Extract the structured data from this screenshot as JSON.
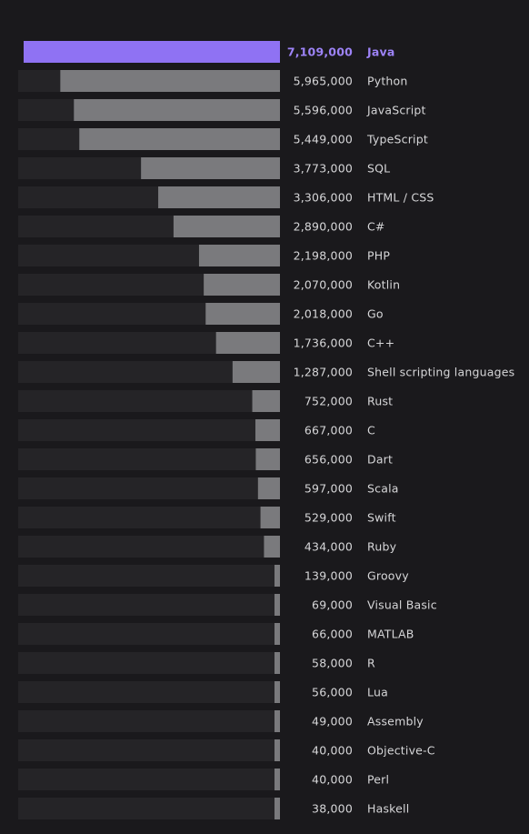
{
  "chart_data": {
    "type": "bar",
    "orientation": "horizontal",
    "highlight": "Java",
    "colors": {
      "background": "#1a191c",
      "track": "#252427",
      "bar": "#7a7a7d",
      "highlight_bar": "#8f72f3",
      "highlight_text": "#9d83f7",
      "text": "#d6d6d8"
    },
    "xlim": [
      0,
      7109000
    ],
    "categories": [
      "Java",
      "Python",
      "JavaScript",
      "TypeScript",
      "SQL",
      "HTML / CSS",
      "C#",
      "PHP",
      "Kotlin",
      "Go",
      "C++",
      "Shell scripting languages",
      "Rust",
      "C",
      "Dart",
      "Scala",
      "Swift",
      "Ruby",
      "Groovy",
      "Visual Basic",
      "MATLAB",
      "R",
      "Lua",
      "Assembly",
      "Objective-C",
      "Perl",
      "Haskell"
    ],
    "values": [
      7109000,
      5965000,
      5596000,
      5449000,
      3773000,
      3306000,
      2890000,
      2198000,
      2070000,
      2018000,
      1736000,
      1287000,
      752000,
      667000,
      656000,
      597000,
      529000,
      434000,
      139000,
      69000,
      66000,
      58000,
      56000,
      49000,
      40000,
      40000,
      38000
    ],
    "value_labels": [
      "7,109,000",
      "5,965,000",
      "5,596,000",
      "5,449,000",
      "3,773,000",
      "3,306,000",
      "2,890,000",
      "2,198,000",
      "2,070,000",
      "2,018,000",
      "1,736,000",
      "1,287,000",
      "752,000",
      "667,000",
      "656,000",
      "597,000",
      "529,000",
      "434,000",
      "139,000",
      "69,000",
      "66,000",
      "58,000",
      "56,000",
      "49,000",
      "40,000",
      "40,000",
      "38,000"
    ]
  }
}
